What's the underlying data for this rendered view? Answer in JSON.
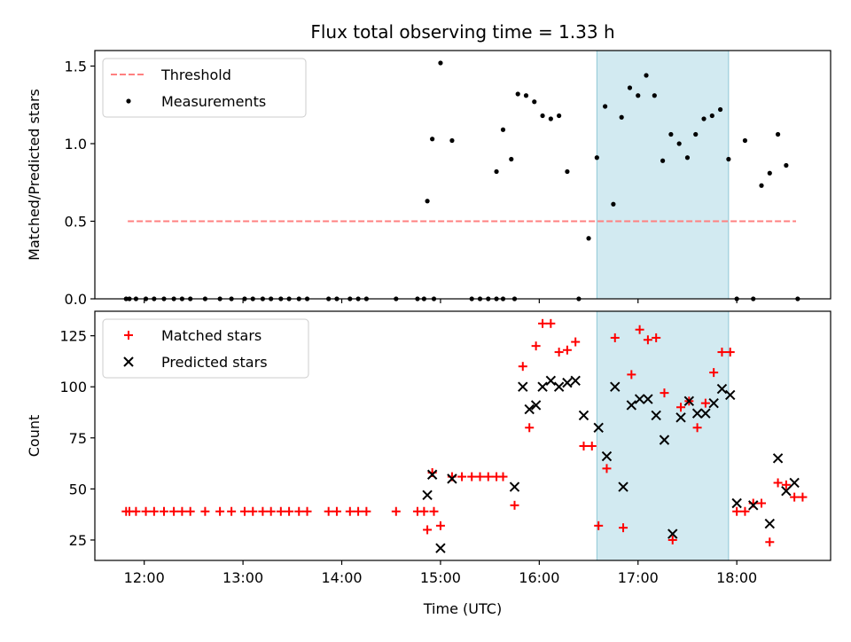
{
  "title": "Flux total observing time = 1.33 h",
  "xlabel": "Time (UTC)",
  "x_tick_labels": [
    "12:00",
    "13:00",
    "14:00",
    "15:00",
    "16:00",
    "17:00",
    "18:00"
  ],
  "colors": {
    "threshold": "#ff8080",
    "measurements": "#000000",
    "matched": "#ff0000",
    "predicted": "#000000",
    "shade": "#add8e6"
  },
  "chart_data": [
    {
      "type": "scatter",
      "ylabel": "Matched/Predicted stars",
      "xlim": [
        "11:30",
        "18:57"
      ],
      "ylim": [
        0,
        1.6
      ],
      "y_ticks": [
        "0.0",
        "0.5",
        "1.0",
        "1.5"
      ],
      "legend_position": "top-left",
      "shaded_region": {
        "x_start": "16:35",
        "x_end": "17:55"
      },
      "series": [
        {
          "name": "Threshold",
          "style": "dashed-line",
          "x": [
            "11:50",
            "18:36"
          ],
          "y": [
            0.5,
            0.5
          ]
        },
        {
          "name": "Measurements",
          "style": "dot",
          "points": [
            [
              "11:49",
              0
            ],
            [
              "11:51",
              0
            ],
            [
              "11:55",
              0
            ],
            [
              "12:01",
              0
            ],
            [
              "12:06",
              0
            ],
            [
              "12:12",
              0
            ],
            [
              "12:18",
              0
            ],
            [
              "12:23",
              0
            ],
            [
              "12:28",
              0
            ],
            [
              "12:37",
              0
            ],
            [
              "12:46",
              0
            ],
            [
              "12:53",
              0
            ],
            [
              "13:01",
              0
            ],
            [
              "13:06",
              0
            ],
            [
              "13:12",
              0
            ],
            [
              "13:17",
              0
            ],
            [
              "13:23",
              0
            ],
            [
              "13:28",
              0
            ],
            [
              "13:34",
              0
            ],
            [
              "13:39",
              0
            ],
            [
              "13:52",
              0
            ],
            [
              "13:57",
              0
            ],
            [
              "14:05",
              0
            ],
            [
              "14:10",
              0
            ],
            [
              "14:15",
              0
            ],
            [
              "14:33",
              0
            ],
            [
              "14:46",
              0
            ],
            [
              "14:50",
              0
            ],
            [
              "14:56",
              0
            ],
            [
              "15:19",
              0
            ],
            [
              "15:24",
              0
            ],
            [
              "15:29",
              0
            ],
            [
              "15:34",
              0
            ],
            [
              "15:38",
              0
            ],
            [
              "15:45",
              0
            ],
            [
              "16:24",
              0
            ],
            [
              "18:00",
              0
            ],
            [
              "18:10",
              0
            ],
            [
              "18:37",
              0
            ],
            [
              "14:52",
              0.63
            ],
            [
              "14:55",
              1.03
            ],
            [
              "15:00",
              1.52
            ],
            [
              "15:07",
              1.02
            ],
            [
              "15:34",
              0.82
            ],
            [
              "15:38",
              1.09
            ],
            [
              "15:43",
              0.9
            ],
            [
              "15:47",
              1.32
            ],
            [
              "15:52",
              1.31
            ],
            [
              "15:57",
              1.27
            ],
            [
              "16:02",
              1.18
            ],
            [
              "16:07",
              1.16
            ],
            [
              "16:12",
              1.18
            ],
            [
              "16:17",
              0.82
            ],
            [
              "16:30",
              0.39
            ],
            [
              "16:35",
              0.91
            ],
            [
              "16:40",
              1.24
            ],
            [
              "16:45",
              0.61
            ],
            [
              "16:50",
              1.17
            ],
            [
              "16:55",
              1.36
            ],
            [
              "17:00",
              1.31
            ],
            [
              "17:05",
              1.44
            ],
            [
              "17:10",
              1.31
            ],
            [
              "17:15",
              0.89
            ],
            [
              "17:20",
              1.06
            ],
            [
              "17:25",
              1.0
            ],
            [
              "17:30",
              0.91
            ],
            [
              "17:35",
              1.06
            ],
            [
              "17:40",
              1.16
            ],
            [
              "17:45",
              1.18
            ],
            [
              "17:50",
              1.22
            ],
            [
              "17:55",
              0.9
            ],
            [
              "18:05",
              1.02
            ],
            [
              "18:15",
              0.73
            ],
            [
              "18:20",
              0.81
            ],
            [
              "18:25",
              1.06
            ],
            [
              "18:30",
              0.86
            ]
          ]
        }
      ]
    },
    {
      "type": "scatter",
      "ylabel": "Count",
      "xlabel": "Time (UTC)",
      "xlim": [
        "11:30",
        "18:57"
      ],
      "ylim": [
        15,
        137
      ],
      "y_ticks": [
        "25",
        "50",
        "75",
        "100",
        "125"
      ],
      "legend_position": "top-left",
      "shaded_region": {
        "x_start": "16:35",
        "x_end": "17:55"
      },
      "series": [
        {
          "name": "Matched stars",
          "marker": "+",
          "points": [
            [
              "11:49",
              39
            ],
            [
              "11:51",
              39
            ],
            [
              "11:55",
              39
            ],
            [
              "12:01",
              39
            ],
            [
              "12:06",
              39
            ],
            [
              "12:12",
              39
            ],
            [
              "12:18",
              39
            ],
            [
              "12:23",
              39
            ],
            [
              "12:28",
              39
            ],
            [
              "12:37",
              39
            ],
            [
              "12:46",
              39
            ],
            [
              "12:53",
              39
            ],
            [
              "13:01",
              39
            ],
            [
              "13:06",
              39
            ],
            [
              "13:12",
              39
            ],
            [
              "13:17",
              39
            ],
            [
              "13:23",
              39
            ],
            [
              "13:28",
              39
            ],
            [
              "13:34",
              39
            ],
            [
              "13:39",
              39
            ],
            [
              "13:52",
              39
            ],
            [
              "13:57",
              39
            ],
            [
              "14:05",
              39
            ],
            [
              "14:10",
              39
            ],
            [
              "14:15",
              39
            ],
            [
              "14:33",
              39
            ],
            [
              "14:46",
              39
            ],
            [
              "14:50",
              39
            ],
            [
              "14:56",
              39
            ],
            [
              "14:52",
              30
            ],
            [
              "14:55",
              58
            ],
            [
              "15:00",
              32
            ],
            [
              "15:07",
              56
            ],
            [
              "15:13",
              56
            ],
            [
              "15:19",
              56
            ],
            [
              "15:24",
              56
            ],
            [
              "15:29",
              56
            ],
            [
              "15:34",
              56
            ],
            [
              "15:38",
              56
            ],
            [
              "15:45",
              42
            ],
            [
              "15:50",
              110
            ],
            [
              "15:54",
              80
            ],
            [
              "15:58",
              120
            ],
            [
              "16:02",
              131
            ],
            [
              "16:07",
              131
            ],
            [
              "16:12",
              117
            ],
            [
              "16:17",
              118
            ],
            [
              "16:22",
              122
            ],
            [
              "16:27",
              71
            ],
            [
              "16:32",
              71
            ],
            [
              "16:36",
              32
            ],
            [
              "16:41",
              60
            ],
            [
              "16:46",
              124
            ],
            [
              "16:51",
              31
            ],
            [
              "16:56",
              106
            ],
            [
              "17:01",
              128
            ],
            [
              "17:06",
              123
            ],
            [
              "17:11",
              124
            ],
            [
              "17:16",
              97
            ],
            [
              "17:21",
              25
            ],
            [
              "17:26",
              90
            ],
            [
              "17:31",
              93
            ],
            [
              "17:36",
              80
            ],
            [
              "17:41",
              92
            ],
            [
              "17:46",
              107
            ],
            [
              "17:51",
              117
            ],
            [
              "17:56",
              117
            ],
            [
              "18:00",
              39
            ],
            [
              "18:05",
              39
            ],
            [
              "18:10",
              43
            ],
            [
              "18:15",
              43
            ],
            [
              "18:20",
              24
            ],
            [
              "18:25",
              53
            ],
            [
              "18:30",
              52
            ],
            [
              "18:35",
              46
            ],
            [
              "18:40",
              46
            ]
          ]
        },
        {
          "name": "Predicted stars",
          "marker": "x",
          "points": [
            [
              "14:52",
              47
            ],
            [
              "14:55",
              57
            ],
            [
              "15:00",
              21
            ],
            [
              "15:07",
              55
            ],
            [
              "15:45",
              51
            ],
            [
              "15:50",
              100
            ],
            [
              "15:54",
              89
            ],
            [
              "15:58",
              91
            ],
            [
              "16:02",
              100
            ],
            [
              "16:07",
              103
            ],
            [
              "16:12",
              100
            ],
            [
              "16:17",
              102
            ],
            [
              "16:22",
              103
            ],
            [
              "16:27",
              86
            ],
            [
              "16:36",
              80
            ],
            [
              "16:41",
              66
            ],
            [
              "16:46",
              100
            ],
            [
              "16:51",
              51
            ],
            [
              "16:56",
              91
            ],
            [
              "17:01",
              94
            ],
            [
              "17:06",
              94
            ],
            [
              "17:11",
              86
            ],
            [
              "17:16",
              74
            ],
            [
              "17:21",
              28
            ],
            [
              "17:26",
              85
            ],
            [
              "17:31",
              93
            ],
            [
              "17:36",
              87
            ],
            [
              "17:41",
              87
            ],
            [
              "17:46",
              92
            ],
            [
              "17:51",
              99
            ],
            [
              "17:56",
              96
            ],
            [
              "18:00",
              43
            ],
            [
              "18:10",
              42
            ],
            [
              "18:20",
              33
            ],
            [
              "18:25",
              65
            ],
            [
              "18:30",
              49
            ],
            [
              "18:35",
              53
            ]
          ]
        }
      ]
    }
  ]
}
